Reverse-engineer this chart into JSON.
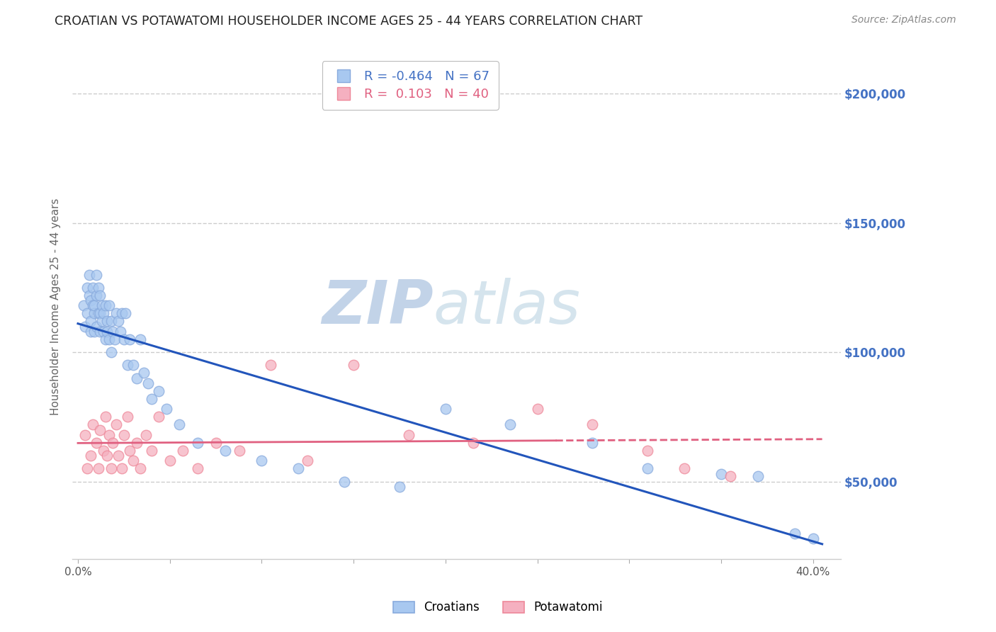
{
  "title": "CROATIAN VS POTAWATOMI HOUSEHOLDER INCOME AGES 25 - 44 YEARS CORRELATION CHART",
  "source": "Source: ZipAtlas.com",
  "ylabel": "Householder Income Ages 25 - 44 years",
  "xlim": [
    -0.003,
    0.415
  ],
  "ylim": [
    20000,
    215000
  ],
  "yticks": [
    50000,
    100000,
    150000,
    200000
  ],
  "ytick_labels": [
    "$50,000",
    "$100,000",
    "$150,000",
    "$200,000"
  ],
  "xticks": [
    0.0,
    0.05,
    0.1,
    0.15,
    0.2,
    0.25,
    0.3,
    0.35,
    0.4
  ],
  "xtick_labels": [
    "0.0%",
    "",
    "",
    "",
    "",
    "",
    "",
    "",
    "40.0%"
  ],
  "title_color": "#222222",
  "title_fontsize": 12.5,
  "source_color": "#888888",
  "source_fontsize": 10,
  "ylabel_color": "#666666",
  "ylabel_fontsize": 11,
  "ytick_color": "#4472c4",
  "background_color": "#ffffff",
  "grid_color": "#cccccc",
  "watermark_zip": "ZIP",
  "watermark_atlas": "atlas",
  "watermark_color": "#c8ddf0",
  "croatian_color": "#a8c8f0",
  "croatian_edge": "#88aadd",
  "potawatomi_color": "#f5b0c0",
  "potawatomi_edge": "#ee8899",
  "croatian_line_color": "#2255bb",
  "potawatomi_line_color": "#e06080",
  "dot_size": 110,
  "legend_r_croatian": "-0.464",
  "legend_n_croatian": "67",
  "legend_r_potawatomi": "0.103",
  "legend_n_potawatomi": "40",
  "croatian_x": [
    0.003,
    0.004,
    0.005,
    0.005,
    0.006,
    0.006,
    0.007,
    0.007,
    0.007,
    0.008,
    0.008,
    0.009,
    0.009,
    0.009,
    0.01,
    0.01,
    0.01,
    0.011,
    0.011,
    0.012,
    0.012,
    0.012,
    0.013,
    0.013,
    0.014,
    0.014,
    0.015,
    0.015,
    0.016,
    0.016,
    0.017,
    0.017,
    0.018,
    0.018,
    0.019,
    0.02,
    0.021,
    0.022,
    0.023,
    0.024,
    0.025,
    0.026,
    0.027,
    0.028,
    0.03,
    0.032,
    0.034,
    0.036,
    0.038,
    0.04,
    0.044,
    0.048,
    0.055,
    0.065,
    0.08,
    0.1,
    0.12,
    0.145,
    0.175,
    0.2,
    0.235,
    0.28,
    0.31,
    0.35,
    0.37,
    0.39,
    0.4
  ],
  "croatian_y": [
    118000,
    110000,
    125000,
    115000,
    122000,
    130000,
    112000,
    120000,
    108000,
    118000,
    125000,
    115000,
    108000,
    118000,
    122000,
    110000,
    130000,
    115000,
    125000,
    108000,
    115000,
    122000,
    112000,
    118000,
    108000,
    115000,
    105000,
    118000,
    112000,
    108000,
    118000,
    105000,
    112000,
    100000,
    108000,
    105000,
    115000,
    112000,
    108000,
    115000,
    105000,
    115000,
    95000,
    105000,
    95000,
    90000,
    105000,
    92000,
    88000,
    82000,
    85000,
    78000,
    72000,
    65000,
    62000,
    58000,
    55000,
    50000,
    48000,
    78000,
    72000,
    65000,
    55000,
    53000,
    52000,
    30000,
    28000
  ],
  "potawatomi_x": [
    0.004,
    0.005,
    0.007,
    0.008,
    0.01,
    0.011,
    0.012,
    0.014,
    0.015,
    0.016,
    0.017,
    0.018,
    0.019,
    0.021,
    0.022,
    0.024,
    0.025,
    0.027,
    0.028,
    0.03,
    0.032,
    0.034,
    0.037,
    0.04,
    0.044,
    0.05,
    0.057,
    0.065,
    0.075,
    0.088,
    0.105,
    0.125,
    0.15,
    0.18,
    0.215,
    0.25,
    0.28,
    0.31,
    0.33,
    0.355
  ],
  "potawatomi_y": [
    68000,
    55000,
    60000,
    72000,
    65000,
    55000,
    70000,
    62000,
    75000,
    60000,
    68000,
    55000,
    65000,
    72000,
    60000,
    55000,
    68000,
    75000,
    62000,
    58000,
    65000,
    55000,
    68000,
    62000,
    75000,
    58000,
    62000,
    55000,
    65000,
    62000,
    95000,
    58000,
    95000,
    68000,
    65000,
    78000,
    72000,
    62000,
    55000,
    52000
  ]
}
